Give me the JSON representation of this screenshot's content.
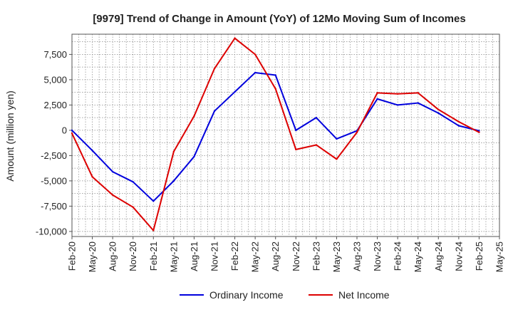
{
  "chart_data": {
    "type": "line",
    "title": "[9979]  Trend of Change in Amount (YoY) of 12Mo Moving Sum of Incomes",
    "ylabel": "Amount (million yen)",
    "xlabel": "",
    "ylim": [
      -10500,
      9500
    ],
    "yticks": [
      -10000,
      -7500,
      -5000,
      -2500,
      0,
      2500,
      5000,
      7500
    ],
    "ytick_labels": [
      "-10,000",
      "-7,500",
      "-5,000",
      "-2,500",
      "0",
      "2,500",
      "5,000",
      "7,500"
    ],
    "grid": true,
    "legend_position": "bottom-center",
    "categories": [
      "Feb-20",
      "May-20",
      "Aug-20",
      "Nov-20",
      "Feb-21",
      "May-21",
      "Aug-21",
      "Nov-21",
      "Feb-22",
      "May-22",
      "Aug-22",
      "Nov-22",
      "Feb-23",
      "May-23",
      "Aug-23",
      "Nov-23",
      "Feb-24",
      "May-24",
      "Aug-24",
      "Nov-24",
      "Feb-25",
      "May-25"
    ],
    "series": [
      {
        "name": "Ordinary Income",
        "color": "#0000dd",
        "values": [
          0,
          -2000,
          -4100,
          -5100,
          -7000,
          -5000,
          -2600,
          1900,
          3800,
          5700,
          5450,
          0,
          1250,
          -850,
          -50,
          3100,
          2500,
          2700,
          1700,
          450,
          -50,
          null
        ]
      },
      {
        "name": "Net Income",
        "color": "#dd0000",
        "values": [
          -300,
          -4600,
          -6400,
          -7600,
          -9900,
          -2100,
          1400,
          6100,
          9100,
          7500,
          4100,
          -1900,
          -1450,
          -2850,
          -200,
          3700,
          3600,
          3700,
          2050,
          850,
          -200,
          null
        ]
      }
    ]
  }
}
